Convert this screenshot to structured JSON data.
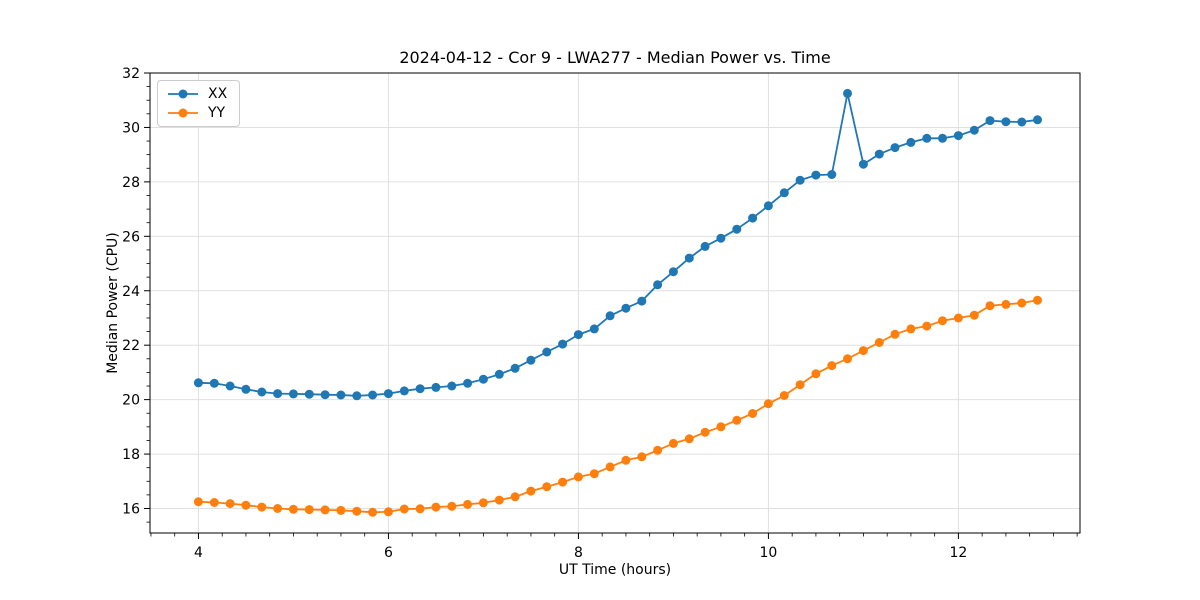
{
  "chart_data": {
    "type": "line",
    "title": "2024-04-12 - Cor 9 - LWA277 - Median Power vs. Time",
    "xlabel": "UT Time (hours)",
    "ylabel": "Median Power (CPU)",
    "xlim": [
      3.49,
      13.28
    ],
    "ylim": [
      15.1,
      32.0
    ],
    "xticks": [
      4,
      6,
      8,
      10,
      12
    ],
    "yticks": [
      16,
      18,
      20,
      22,
      24,
      26,
      28,
      30,
      32
    ],
    "x_minor_step": 0.25,
    "y_minor_step": 0.5,
    "grid": true,
    "grid_color": "#e0e0e0",
    "legend_position": "upper left",
    "x": [
      4.0,
      4.167,
      4.333,
      4.5,
      4.667,
      4.833,
      5.0,
      5.167,
      5.333,
      5.5,
      5.667,
      5.833,
      6.0,
      6.167,
      6.333,
      6.5,
      6.667,
      6.833,
      7.0,
      7.167,
      7.333,
      7.5,
      7.667,
      7.833,
      8.0,
      8.167,
      8.333,
      8.5,
      8.667,
      8.833,
      9.0,
      9.167,
      9.333,
      9.5,
      9.667,
      9.833,
      10.0,
      10.167,
      10.333,
      10.5,
      10.667,
      10.833,
      11.0,
      11.167,
      11.333,
      11.5,
      11.667,
      11.833,
      12.0,
      12.167,
      12.333,
      12.5,
      12.667,
      12.833
    ],
    "series": [
      {
        "name": "XX",
        "color": "#1f77b4",
        "values": [
          20.62,
          20.6,
          20.5,
          20.38,
          20.28,
          20.22,
          20.21,
          20.2,
          20.18,
          20.17,
          20.14,
          20.17,
          20.22,
          20.32,
          20.4,
          20.45,
          20.5,
          20.6,
          20.75,
          20.93,
          21.15,
          21.45,
          21.75,
          22.04,
          22.39,
          22.6,
          23.08,
          23.36,
          23.62,
          24.22,
          24.7,
          25.2,
          25.63,
          25.93,
          26.26,
          26.67,
          27.12,
          27.6,
          28.06,
          28.25,
          28.27,
          31.25,
          28.65,
          29.02,
          29.26,
          29.45,
          29.6,
          29.6,
          29.7,
          29.9,
          30.25,
          30.21,
          30.2,
          30.28
        ]
      },
      {
        "name": "YY",
        "color": "#ff7f0e",
        "values": [
          16.25,
          16.22,
          16.18,
          16.12,
          16.05,
          16.0,
          15.97,
          15.96,
          15.95,
          15.93,
          15.9,
          15.86,
          15.88,
          15.98,
          15.99,
          16.05,
          16.08,
          16.15,
          16.21,
          16.31,
          16.43,
          16.64,
          16.8,
          16.97,
          17.16,
          17.28,
          17.53,
          17.77,
          17.9,
          18.14,
          18.39,
          18.56,
          18.8,
          19.0,
          19.24,
          19.49,
          19.85,
          20.15,
          20.55,
          20.95,
          21.25,
          21.5,
          21.8,
          22.1,
          22.4,
          22.6,
          22.7,
          22.9,
          23.0,
          23.1,
          23.45,
          23.5,
          23.55,
          23.65
        ]
      }
    ]
  }
}
